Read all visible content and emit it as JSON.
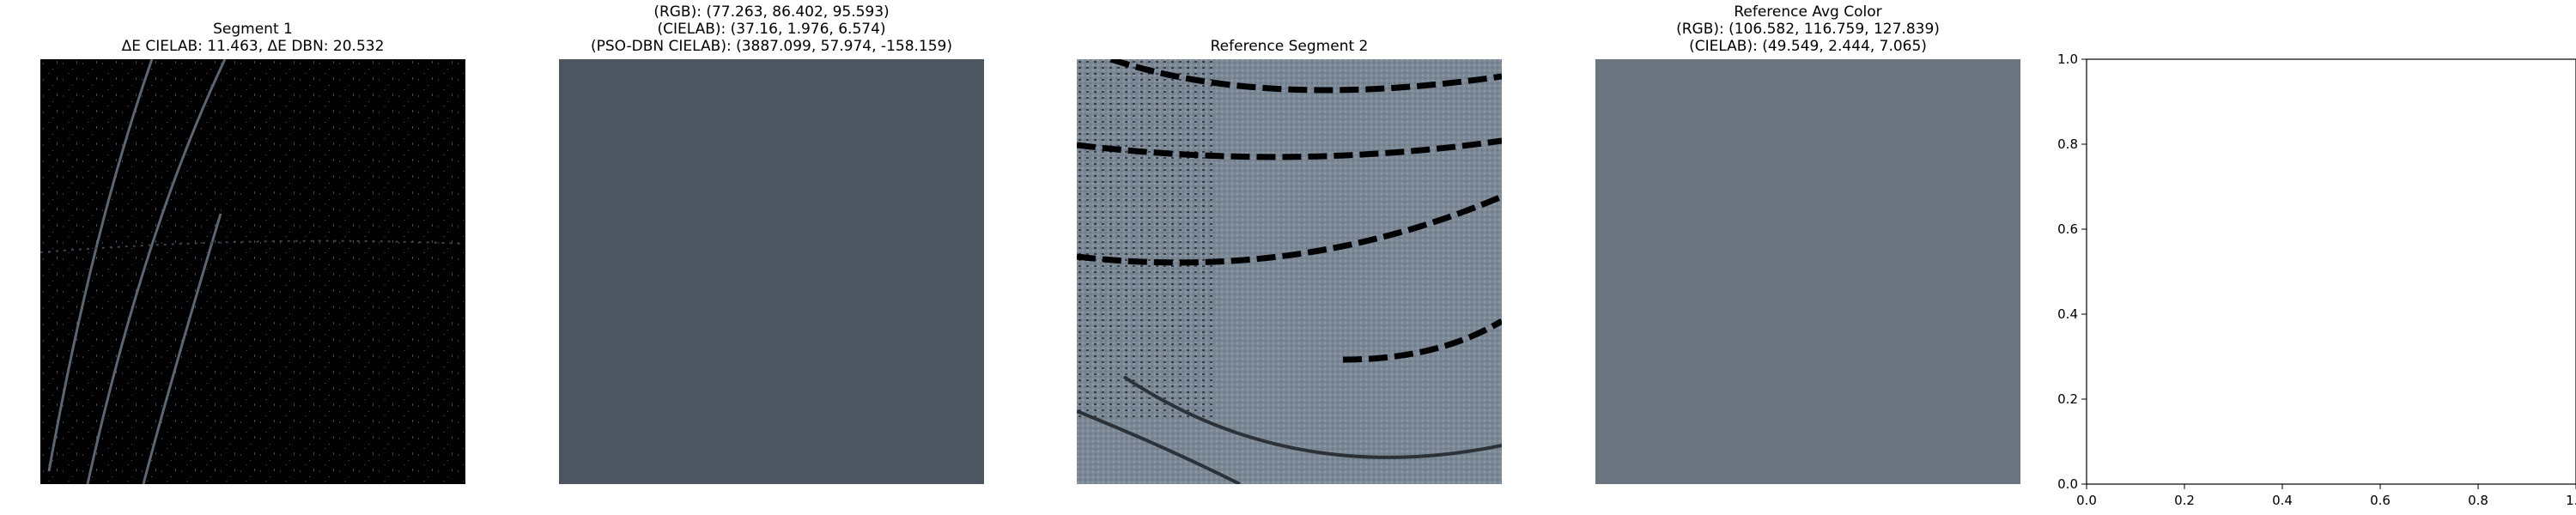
{
  "panels": [
    {
      "title_lines": [
        "Segment 1",
        "ΔE CIELAB: 11.463, ΔE DBN: 20.532"
      ],
      "kind": "image"
    },
    {
      "title_lines": [
        "(RGB): (77.263, 86.402, 95.593)",
        "(CIELAB): (37.16, 1.976, 6.574)",
        "(PSO-DBN CIELAB): (3887.099, 57.974, -158.159)"
      ],
      "kind": "color-swatch",
      "color": "#4d5660"
    },
    {
      "title_lines": [
        "Reference Segment 2"
      ],
      "kind": "image"
    },
    {
      "title_lines": [
        "Reference Avg Color",
        "(RGB): (106.582, 116.759, 127.839)",
        "(CIELAB): (49.549, 2.444, 7.065)"
      ],
      "kind": "color-swatch",
      "color": "#6a7580"
    }
  ],
  "chart_data": {
    "type": "scatter",
    "title": "",
    "xlabel": "",
    "ylabel": "",
    "xlim": [
      0.0,
      1.0
    ],
    "ylim": [
      0.0,
      1.0
    ],
    "x_ticks": [
      "0.0",
      "0.2",
      "0.4",
      "0.6",
      "0.8",
      "1.0"
    ],
    "y_ticks": [
      "0.0",
      "0.2",
      "0.4",
      "0.6",
      "0.8",
      "1.0"
    ],
    "series": []
  }
}
